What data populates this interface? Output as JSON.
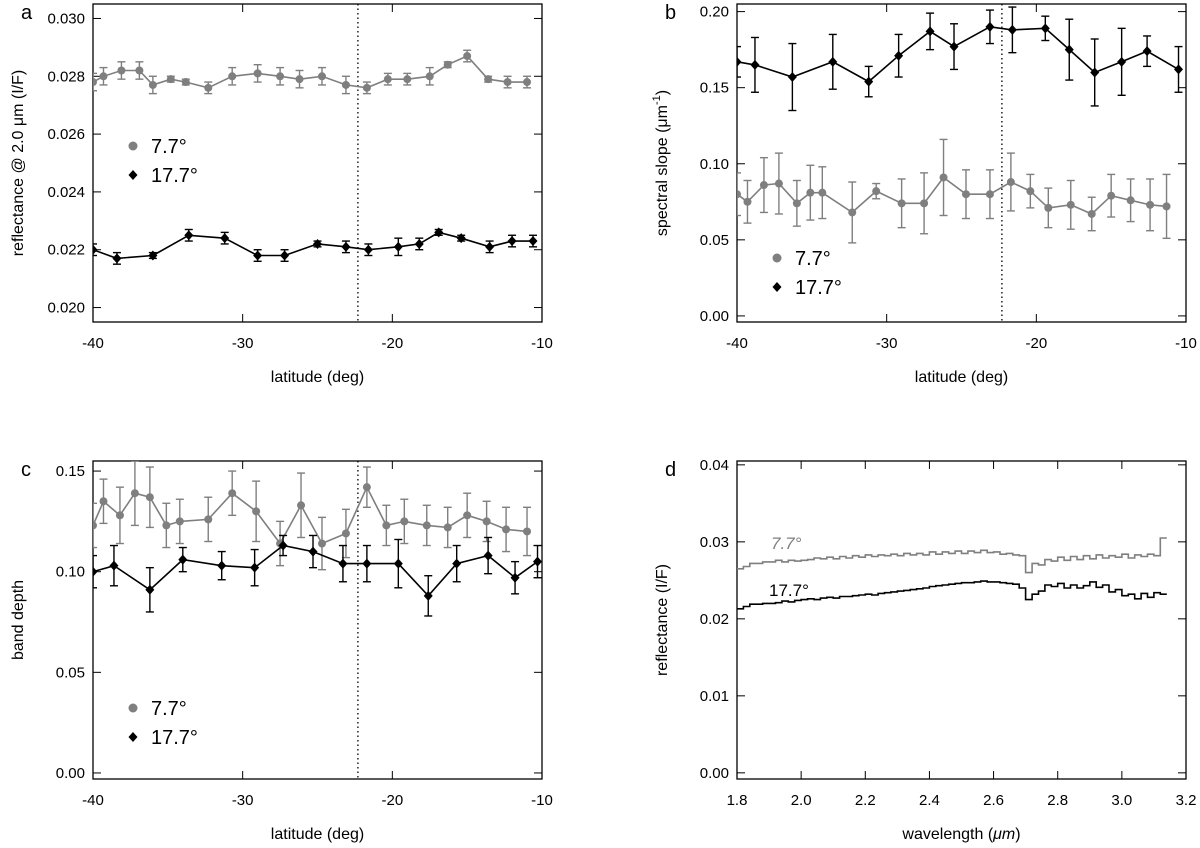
{
  "chart_data": [
    {
      "type": "line",
      "panel": "a",
      "xlabel": "latitude (deg)",
      "ylabel": "reflectance @ 2.0 μm (I/F)",
      "xlim": [
        -40,
        -10
      ],
      "ylim": [
        0.0195,
        0.0305
      ],
      "xticks": [
        -40,
        -30,
        -20,
        -10
      ],
      "xtick_labels": [
        "-40",
        "-30",
        "-20",
        "-10"
      ],
      "yticks": [
        0.02,
        0.022,
        0.024,
        0.026,
        0.028,
        0.03
      ],
      "ytick_labels": [
        "0.020",
        "0.022",
        "0.024",
        "0.026",
        "0.028",
        "0.030"
      ],
      "vline": -22.3,
      "legend": [
        {
          "label": "7.7°",
          "marker": "circle",
          "color": "#7f7f7f"
        },
        {
          "label": "17.7°",
          "marker": "diamond",
          "color": "#000000"
        }
      ],
      "legend_position": "center-left",
      "series": [
        {
          "name": "7.7°",
          "marker": "circle",
          "color": "#7f7f7f",
          "x": [
            -40,
            -39.3,
            -38.1,
            -36.9,
            -36,
            -34.8,
            -33.8,
            -32.3,
            -30.7,
            -29,
            -27.5,
            -26.2,
            -24.7,
            -23.1,
            -21.7,
            -20.3,
            -19,
            -17.5,
            -16.3,
            -15,
            -13.6,
            -12.3,
            -11
          ],
          "y": [
            0.0278,
            0.028,
            0.0282,
            0.0282,
            0.0277,
            0.0279,
            0.0278,
            0.0276,
            0.028,
            0.0281,
            0.028,
            0.0279,
            0.028,
            0.0277,
            0.0276,
            0.0279,
            0.0279,
            0.028,
            0.0284,
            0.0287,
            0.0279,
            0.0278,
            0.0278
          ],
          "err": [
            0.0003,
            0.0003,
            0.0003,
            0.0003,
            0.0003,
            0.0001,
            0.0001,
            0.0002,
            0.0003,
            0.0003,
            0.0003,
            0.0003,
            0.0003,
            0.0003,
            0.0002,
            0.0002,
            0.0002,
            0.0003,
            0.0001,
            0.0002,
            0.0001,
            0.0002,
            0.0002
          ]
        },
        {
          "name": "17.7°",
          "marker": "diamond",
          "color": "#000000",
          "x": [
            -40,
            -38.4,
            -36,
            -33.6,
            -31.2,
            -29,
            -27.2,
            -25,
            -23.1,
            -21.6,
            -19.6,
            -18.2,
            -16.9,
            -15.4,
            -13.5,
            -12,
            -10.6
          ],
          "y": [
            0.022,
            0.0217,
            0.0218,
            0.0225,
            0.0224,
            0.0218,
            0.0218,
            0.0222,
            0.0221,
            0.022,
            0.0221,
            0.0222,
            0.0226,
            0.0224,
            0.0221,
            0.0223,
            0.0223
          ],
          "err": [
            0.0002,
            0.0002,
            0.0001,
            0.0002,
            0.0002,
            0.0002,
            0.0002,
            0.0001,
            0.0002,
            0.0002,
            0.0003,
            0.0002,
            0.0001,
            0.0001,
            0.0002,
            0.0002,
            0.0002
          ]
        }
      ]
    },
    {
      "type": "line",
      "panel": "b",
      "xlabel": "latitude (deg)",
      "ylabel": "spectral slope (μm",
      "ylabel_sup": "-1",
      "ylabel_end": ")",
      "xlim": [
        -40,
        -10
      ],
      "ylim": [
        -0.004,
        0.205
      ],
      "xticks": [
        -40,
        -30,
        -20,
        -10
      ],
      "xtick_labels": [
        "-40",
        "-30",
        "-20",
        "-10"
      ],
      "yticks": [
        0.0,
        0.05,
        0.1,
        0.15,
        0.2
      ],
      "ytick_labels": [
        "0.00",
        "0.05",
        "0.10",
        "0.15",
        "0.20"
      ],
      "vline": -22.3,
      "legend": [
        {
          "label": "7.7°",
          "marker": "circle",
          "color": "#7f7f7f"
        },
        {
          "label": "17.7°",
          "marker": "diamond",
          "color": "#000000"
        }
      ],
      "legend_position": "lower-left",
      "series": [
        {
          "name": "7.7°",
          "marker": "circle",
          "color": "#7f7f7f",
          "x": [
            -40,
            -39.3,
            -38.2,
            -37.2,
            -36,
            -35.1,
            -34.3,
            -32.3,
            -30.7,
            -29,
            -27.5,
            -26.2,
            -24.7,
            -23.1,
            -21.7,
            -20.4,
            -19.2,
            -17.7,
            -16.3,
            -15,
            -13.7,
            -12.4,
            -11.3
          ],
          "y": [
            0.08,
            0.075,
            0.086,
            0.087,
            0.074,
            0.081,
            0.081,
            0.068,
            0.082,
            0.074,
            0.074,
            0.091,
            0.08,
            0.08,
            0.088,
            0.082,
            0.071,
            0.073,
            0.067,
            0.079,
            0.076,
            0.073,
            0.072
          ],
          "err": [
            0.014,
            0.014,
            0.018,
            0.02,
            0.015,
            0.018,
            0.017,
            0.02,
            0.005,
            0.016,
            0.02,
            0.025,
            0.016,
            0.016,
            0.019,
            0.011,
            0.013,
            0.016,
            0.011,
            0.014,
            0.014,
            0.017,
            0.021
          ]
        },
        {
          "name": "17.7°",
          "marker": "diamond",
          "color": "#000000",
          "x": [
            -40,
            -38.8,
            -36.3,
            -33.6,
            -31.2,
            -29.2,
            -27.1,
            -25.5,
            -23.1,
            -21.6,
            -19.4,
            -17.8,
            -16.1,
            -14.3,
            -12.6,
            -10.5
          ],
          "y": [
            0.167,
            0.165,
            0.157,
            0.167,
            0.154,
            0.171,
            0.187,
            0.177,
            0.19,
            0.188,
            0.189,
            0.175,
            0.16,
            0.167,
            0.174,
            0.162
          ],
          "err": [
            0.01,
            0.018,
            0.022,
            0.018,
            0.01,
            0.014,
            0.012,
            0.015,
            0.011,
            0.015,
            0.008,
            0.02,
            0.022,
            0.022,
            0.01,
            0.015
          ]
        }
      ]
    },
    {
      "type": "line",
      "panel": "c",
      "xlabel": "latitude (deg)",
      "ylabel": "band depth",
      "xlim": [
        -40,
        -10
      ],
      "ylim": [
        -0.003,
        0.155
      ],
      "xticks": [
        -40,
        -30,
        -20,
        -10
      ],
      "xtick_labels": [
        "-40",
        "-30",
        "-20",
        "-10"
      ],
      "yticks": [
        0.0,
        0.05,
        0.1,
        0.15
      ],
      "ytick_labels": [
        "0.00",
        "0.05",
        "0.10",
        "0.15"
      ],
      "vline": -22.3,
      "legend": [
        {
          "label": "7.7°",
          "marker": "circle",
          "color": "#7f7f7f"
        },
        {
          "label": "17.7°",
          "marker": "diamond",
          "color": "#000000"
        }
      ],
      "legend_position": "lower-left",
      "series": [
        {
          "name": "7.7°",
          "marker": "circle",
          "color": "#7f7f7f",
          "x": [
            -40,
            -39.3,
            -38.2,
            -37.2,
            -36.2,
            -35.1,
            -34.2,
            -32.3,
            -30.7,
            -29.1,
            -27.5,
            -26.1,
            -24.7,
            -23.1,
            -21.7,
            -20.4,
            -19.2,
            -17.7,
            -16.3,
            -15,
            -13.7,
            -12.4,
            -11
          ],
          "y": [
            0.123,
            0.135,
            0.128,
            0.139,
            0.137,
            0.123,
            0.125,
            0.126,
            0.139,
            0.13,
            0.114,
            0.133,
            0.114,
            0.119,
            0.142,
            0.123,
            0.125,
            0.123,
            0.122,
            0.128,
            0.125,
            0.121,
            0.12
          ],
          "err": [
            0.011,
            0.011,
            0.014,
            0.016,
            0.015,
            0.011,
            0.011,
            0.011,
            0.011,
            0.015,
            0.011,
            0.016,
            0.013,
            0.012,
            0.01,
            0.01,
            0.011,
            0.01,
            0.01,
            0.011,
            0.01,
            0.011,
            0.012
          ]
        },
        {
          "name": "17.7°",
          "marker": "diamond",
          "color": "#000000",
          "x": [
            -40,
            -38.6,
            -36.2,
            -34,
            -31.4,
            -29.2,
            -27.3,
            -25.3,
            -23.3,
            -21.7,
            -19.6,
            -17.6,
            -15.7,
            -13.6,
            -11.8,
            -10.3
          ],
          "y": [
            0.1,
            0.103,
            0.091,
            0.106,
            0.103,
            0.102,
            0.113,
            0.11,
            0.104,
            0.104,
            0.104,
            0.088,
            0.104,
            0.108,
            0.097,
            0.105
          ],
          "err": [
            0.008,
            0.01,
            0.011,
            0.006,
            0.007,
            0.009,
            0.005,
            0.008,
            0.009,
            0.009,
            0.012,
            0.01,
            0.009,
            0.009,
            0.008,
            0.008
          ]
        }
      ]
    },
    {
      "type": "line",
      "panel": "d",
      "step": true,
      "xlabel": "wavelength (",
      "xlabel_unit": "μm",
      "xlabel_end": ")",
      "ylabel": "reflectance (I/F)",
      "xlim": [
        1.8,
        3.2
      ],
      "ylim": [
        -0.0008,
        0.0405
      ],
      "xticks": [
        1.8,
        2.0,
        2.2,
        2.4,
        2.6,
        2.8,
        3.0,
        3.2
      ],
      "xtick_labels": [
        "1.8",
        "2.0",
        "2.2",
        "2.4",
        "2.6",
        "2.8",
        "3.0",
        "3.2"
      ],
      "yticks": [
        0.0,
        0.01,
        0.02,
        0.03,
        0.04
      ],
      "ytick_labels": [
        "0.00",
        "0.01",
        "0.02",
        "0.03",
        "0.04"
      ],
      "annotations": [
        "7.7°",
        "17.7°"
      ],
      "series": [
        {
          "name": "7.7°",
          "color": "#7f7f7f",
          "x": [
            1.8,
            1.82,
            1.84,
            1.86,
            1.88,
            1.9,
            1.92,
            1.94,
            1.96,
            1.98,
            2.0,
            2.02,
            2.04,
            2.06,
            2.08,
            2.1,
            2.12,
            2.14,
            2.16,
            2.18,
            2.2,
            2.22,
            2.24,
            2.26,
            2.28,
            2.3,
            2.32,
            2.34,
            2.36,
            2.38,
            2.4,
            2.42,
            2.44,
            2.46,
            2.48,
            2.5,
            2.52,
            2.54,
            2.56,
            2.58,
            2.6,
            2.62,
            2.64,
            2.66,
            2.68,
            2.7,
            2.72,
            2.74,
            2.76,
            2.78,
            2.8,
            2.82,
            2.84,
            2.86,
            2.88,
            2.9,
            2.92,
            2.94,
            2.96,
            2.98,
            3.0,
            3.02,
            3.04,
            3.06,
            3.08,
            3.1,
            3.12
          ],
          "y": [
            0.0265,
            0.0268,
            0.0272,
            0.0272,
            0.0274,
            0.0274,
            0.0276,
            0.0274,
            0.0276,
            0.0275,
            0.0276,
            0.0277,
            0.0279,
            0.0278,
            0.028,
            0.0278,
            0.0281,
            0.0279,
            0.0282,
            0.028,
            0.0283,
            0.0281,
            0.0283,
            0.0282,
            0.0284,
            0.0282,
            0.0285,
            0.0283,
            0.0285,
            0.0283,
            0.0287,
            0.0284,
            0.0287,
            0.0285,
            0.0288,
            0.0285,
            0.0288,
            0.0286,
            0.0289,
            0.0286,
            0.0287,
            0.0284,
            0.0285,
            0.0283,
            0.0282,
            0.026,
            0.0272,
            0.027,
            0.0277,
            0.0275,
            0.028,
            0.0276,
            0.0281,
            0.0277,
            0.0282,
            0.0278,
            0.0283,
            0.0279,
            0.0282,
            0.028,
            0.0284,
            0.0279,
            0.0283,
            0.0281,
            0.0284,
            0.0282,
            0.0305
          ]
        },
        {
          "name": "17.7°",
          "color": "#000000",
          "x": [
            1.8,
            1.82,
            1.84,
            1.86,
            1.88,
            1.9,
            1.92,
            1.94,
            1.96,
            1.98,
            2.0,
            2.02,
            2.04,
            2.06,
            2.08,
            2.1,
            2.12,
            2.14,
            2.16,
            2.18,
            2.2,
            2.22,
            2.24,
            2.26,
            2.28,
            2.3,
            2.32,
            2.34,
            2.36,
            2.38,
            2.4,
            2.42,
            2.44,
            2.46,
            2.48,
            2.5,
            2.52,
            2.54,
            2.56,
            2.58,
            2.6,
            2.62,
            2.64,
            2.66,
            2.68,
            2.7,
            2.72,
            2.74,
            2.76,
            2.78,
            2.8,
            2.82,
            2.84,
            2.86,
            2.88,
            2.9,
            2.92,
            2.94,
            2.96,
            2.98,
            3.0,
            3.02,
            3.04,
            3.06,
            3.08,
            3.1,
            3.12
          ],
          "y": [
            0.0213,
            0.0216,
            0.0219,
            0.0219,
            0.022,
            0.022,
            0.0221,
            0.0223,
            0.0222,
            0.0224,
            0.0225,
            0.0226,
            0.0225,
            0.0227,
            0.0228,
            0.0227,
            0.0229,
            0.0229,
            0.023,
            0.0231,
            0.0232,
            0.0231,
            0.0233,
            0.0234,
            0.0235,
            0.0236,
            0.0237,
            0.0238,
            0.0239,
            0.024,
            0.0242,
            0.0243,
            0.0244,
            0.0245,
            0.0246,
            0.0247,
            0.0247,
            0.0248,
            0.0249,
            0.0248,
            0.0248,
            0.0247,
            0.0246,
            0.0245,
            0.024,
            0.0225,
            0.0232,
            0.0236,
            0.0244,
            0.0242,
            0.0246,
            0.024,
            0.0244,
            0.024,
            0.0243,
            0.0248,
            0.0241,
            0.0244,
            0.0235,
            0.0238,
            0.023,
            0.0232,
            0.0226,
            0.0233,
            0.0228,
            0.0234,
            0.0232
          ]
        }
      ]
    }
  ]
}
